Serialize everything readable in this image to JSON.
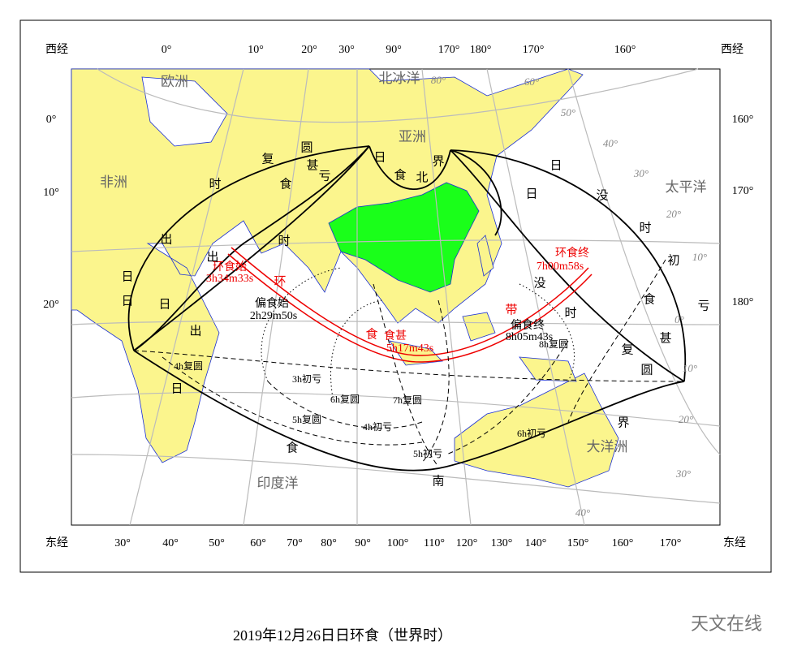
{
  "top_labels": [
    "西经",
    "0°",
    "10°",
    "20°",
    "30°",
    "90°",
    "170°",
    "180°",
    "170°",
    "160°",
    "西经"
  ],
  "bottom_labels": [
    "东经",
    "30°",
    "40°",
    "50°",
    "60°",
    "70°",
    "80°",
    "90°",
    "100°",
    "110°",
    "120°",
    "130°",
    "140°",
    "150°",
    "160°",
    "170°",
    "东经"
  ],
  "left_labels": [
    "0°",
    "10°",
    "20°"
  ],
  "right_labels": [
    "160°",
    "170°",
    "180°"
  ],
  "regions": [
    "欧洲",
    "北冰洋",
    "亚洲",
    "非洲",
    "太平洋",
    "印度洋",
    "大洋洲"
  ],
  "grid_labels": [
    "80°",
    "60°",
    "50°",
    "40°",
    "30°",
    "20°",
    "10°",
    "0°",
    "10°",
    "20°",
    "30°",
    "40°"
  ],
  "events": [
    {
      "label": "环食始",
      "time": "3h34m33s"
    },
    {
      "label": "偏食始",
      "time": "2h29m50s"
    },
    {
      "label": "食甚",
      "time": "5h17m43s"
    },
    {
      "label": "环食终",
      "time": "7h00m58s"
    },
    {
      "label": "偏食终",
      "time": "8h05m43s"
    }
  ],
  "contours": [
    "4h复圆",
    "3h初亏",
    "6h复圆",
    "5h复圆",
    "4h初亏",
    "7h复圆",
    "5h初亏",
    "6h初亏",
    "8h复圆"
  ],
  "curve_chars": [
    "日",
    "出",
    "时",
    "复",
    "圆",
    "日",
    "日",
    "出",
    "出",
    "食",
    "甚",
    "亏",
    "时",
    "日",
    "食",
    "北",
    "界",
    "日",
    "日",
    "没",
    "时",
    "初",
    "亏",
    "没",
    "时",
    "食",
    "甚",
    "复",
    "圆",
    "环",
    "食",
    "带",
    "日",
    "食",
    "南",
    "界"
  ],
  "caption": "2019年12月26日日环食（世界时）",
  "watermark": "天文在线"
}
